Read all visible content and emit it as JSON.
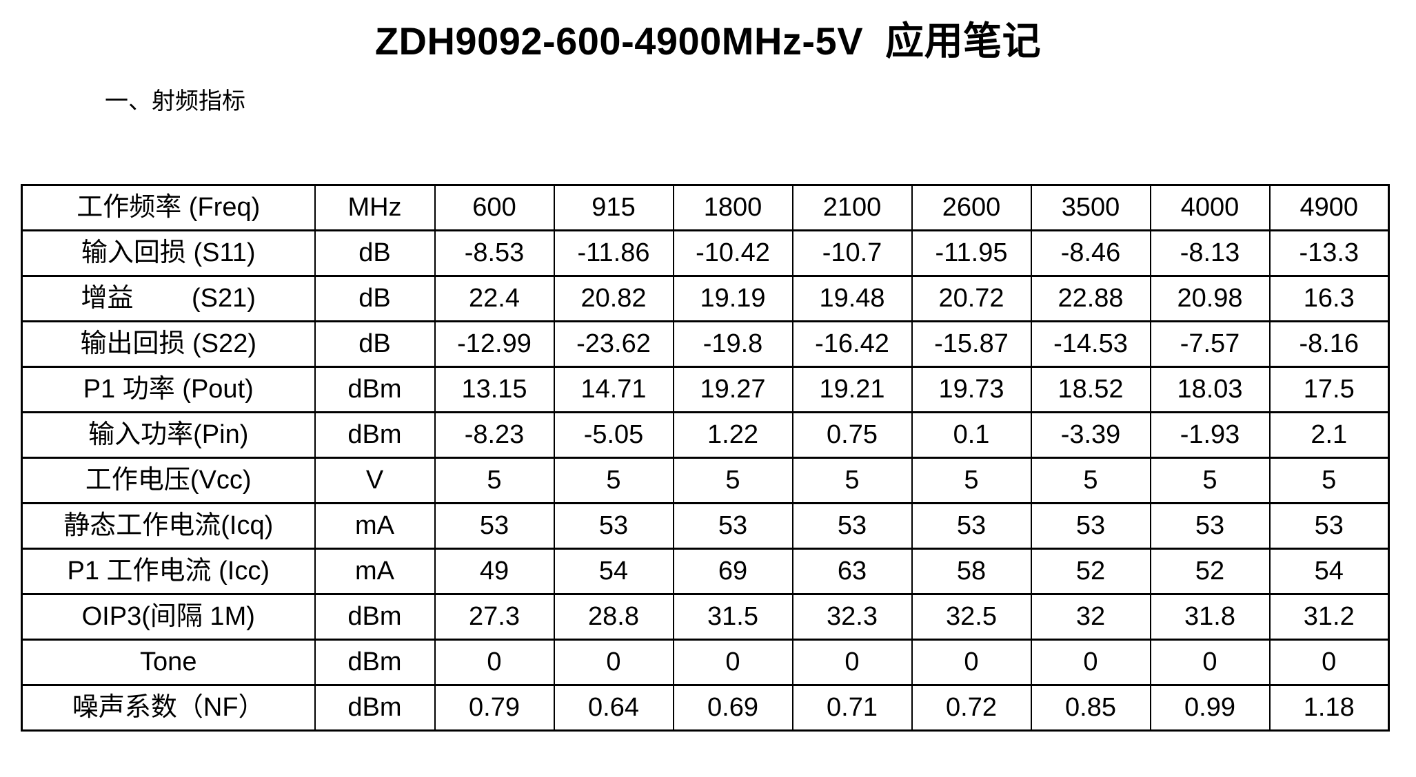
{
  "page": {
    "title": "ZDH9092-600-4900MHz-5V  应用笔记",
    "section_heading": "一、射频指标"
  },
  "colors": {
    "background": "#ffffff",
    "text": "#000000",
    "table_border": "#000000"
  },
  "table": {
    "rows": [
      {
        "label": "工作频率 (Freq)",
        "unit": "MHz",
        "values": [
          "600",
          "915",
          "1800",
          "2100",
          "2600",
          "3500",
          "4000",
          "4900"
        ]
      },
      {
        "label": "输入回损 (S11)",
        "unit": "dB",
        "values": [
          "-8.53",
          "-11.86",
          "-10.42",
          "-10.7",
          "-11.95",
          "-8.46",
          "-8.13",
          "-13.3"
        ]
      },
      {
        "label": "增益        (S21)",
        "unit": "dB",
        "values": [
          "22.4",
          "20.82",
          "19.19",
          "19.48",
          "20.72",
          "22.88",
          "20.98",
          "16.3"
        ]
      },
      {
        "label": "输出回损 (S22)",
        "unit": "dB",
        "values": [
          "-12.99",
          "-23.62",
          "-19.8",
          "-16.42",
          "-15.87",
          "-14.53",
          "-7.57",
          "-8.16"
        ]
      },
      {
        "label": "P1 功率 (Pout)",
        "unit": "dBm",
        "values": [
          "13.15",
          "14.71",
          "19.27",
          "19.21",
          "19.73",
          "18.52",
          "18.03",
          "17.5"
        ]
      },
      {
        "label": "输入功率(Pin)",
        "unit": "dBm",
        "values": [
          "-8.23",
          "-5.05",
          "1.22",
          "0.75",
          "0.1",
          "-3.39",
          "-1.93",
          "2.1"
        ]
      },
      {
        "label": "工作电压(Vcc)",
        "unit": "V",
        "values": [
          "5",
          "5",
          "5",
          "5",
          "5",
          "5",
          "5",
          "5"
        ]
      },
      {
        "label": "静态工作电流(Icq)",
        "unit": "mA",
        "values": [
          "53",
          "53",
          "53",
          "53",
          "53",
          "53",
          "53",
          "53"
        ]
      },
      {
        "label": "P1 工作电流 (Icc)",
        "unit": "mA",
        "values": [
          "49",
          "54",
          "69",
          "63",
          "58",
          "52",
          "52",
          "54"
        ]
      },
      {
        "label": "OIP3(间隔 1M)",
        "unit": "dBm",
        "values": [
          "27.3",
          "28.8",
          "31.5",
          "32.3",
          "32.5",
          "32",
          "31.8",
          "31.2"
        ]
      },
      {
        "label": "Tone",
        "unit": "dBm",
        "values": [
          "0",
          "0",
          "0",
          "0",
          "0",
          "0",
          "0",
          "0"
        ]
      },
      {
        "label": "噪声系数（NF）",
        "unit": "dBm",
        "values": [
          "0.79",
          "0.64",
          "0.69",
          "0.71",
          "0.72",
          "0.85",
          "0.99",
          "1.18"
        ]
      }
    ]
  }
}
